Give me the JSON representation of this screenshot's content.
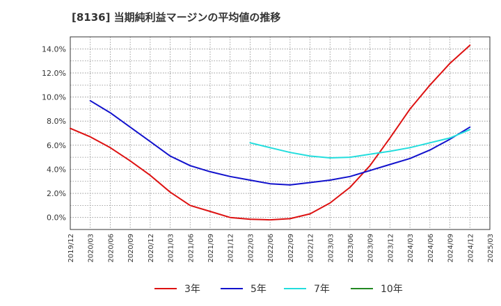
{
  "chart_data": {
    "type": "line",
    "title": "[8136]  当期純利益マージンの平均値の推移",
    "xlabel": "",
    "ylabel": "",
    "ylim": [
      -1.0,
      15.0
    ],
    "yticks": [
      "0.0%",
      "2.0%",
      "4.0%",
      "6.0%",
      "8.0%",
      "10.0%",
      "12.0%",
      "14.0%"
    ],
    "ytick_values": [
      0,
      2,
      4,
      6,
      8,
      10,
      12,
      14
    ],
    "x_categories": [
      "2019/12",
      "2020/03",
      "2020/06",
      "2020/09",
      "2020/12",
      "2021/03",
      "2021/06",
      "2021/09",
      "2021/12",
      "2022/03",
      "2022/06",
      "2022/09",
      "2022/12",
      "2023/03",
      "2023/06",
      "2023/09",
      "2023/12",
      "2024/03",
      "2024/06",
      "2024/09",
      "2024/12",
      "2025/03"
    ],
    "grid": true,
    "legend_position": "bottom",
    "series": [
      {
        "name": "3年",
        "color": "#dd1111",
        "x": [
          "2019/12",
          "2020/03",
          "2020/06",
          "2020/09",
          "2020/12",
          "2021/03",
          "2021/06",
          "2021/09",
          "2021/12",
          "2022/03",
          "2022/06",
          "2022/09",
          "2022/12",
          "2023/03",
          "2023/06",
          "2023/09",
          "2023/12",
          "2024/03",
          "2024/06",
          "2024/09",
          "2024/12"
        ],
        "values": [
          7.4,
          6.7,
          5.8,
          4.7,
          3.5,
          2.1,
          1.0,
          0.5,
          0.0,
          -0.15,
          -0.2,
          -0.1,
          0.3,
          1.2,
          2.5,
          4.3,
          6.6,
          9.0,
          11.0,
          12.8,
          14.3
        ]
      },
      {
        "name": "5年",
        "color": "#1111cc",
        "x": [
          "2020/03",
          "2020/06",
          "2020/09",
          "2020/12",
          "2021/03",
          "2021/06",
          "2021/09",
          "2021/12",
          "2022/03",
          "2022/06",
          "2022/09",
          "2022/12",
          "2023/03",
          "2023/06",
          "2023/09",
          "2023/12",
          "2024/03",
          "2024/06",
          "2024/09",
          "2024/12"
        ],
        "values": [
          9.7,
          8.7,
          7.5,
          6.3,
          5.1,
          4.3,
          3.8,
          3.4,
          3.1,
          2.8,
          2.7,
          2.9,
          3.1,
          3.4,
          3.9,
          4.4,
          4.9,
          5.6,
          6.5,
          7.5
        ]
      },
      {
        "name": "7年",
        "color": "#22dddd",
        "x": [
          "2022/03",
          "2022/06",
          "2022/09",
          "2022/12",
          "2023/03",
          "2023/06",
          "2023/09",
          "2023/12",
          "2024/03",
          "2024/06",
          "2024/09",
          "2024/12"
        ],
        "values": [
          6.2,
          5.8,
          5.4,
          5.1,
          4.95,
          5.0,
          5.25,
          5.5,
          5.8,
          6.2,
          6.6,
          7.3
        ]
      },
      {
        "name": "10年",
        "color": "#228822",
        "x": [],
        "values": []
      }
    ]
  }
}
